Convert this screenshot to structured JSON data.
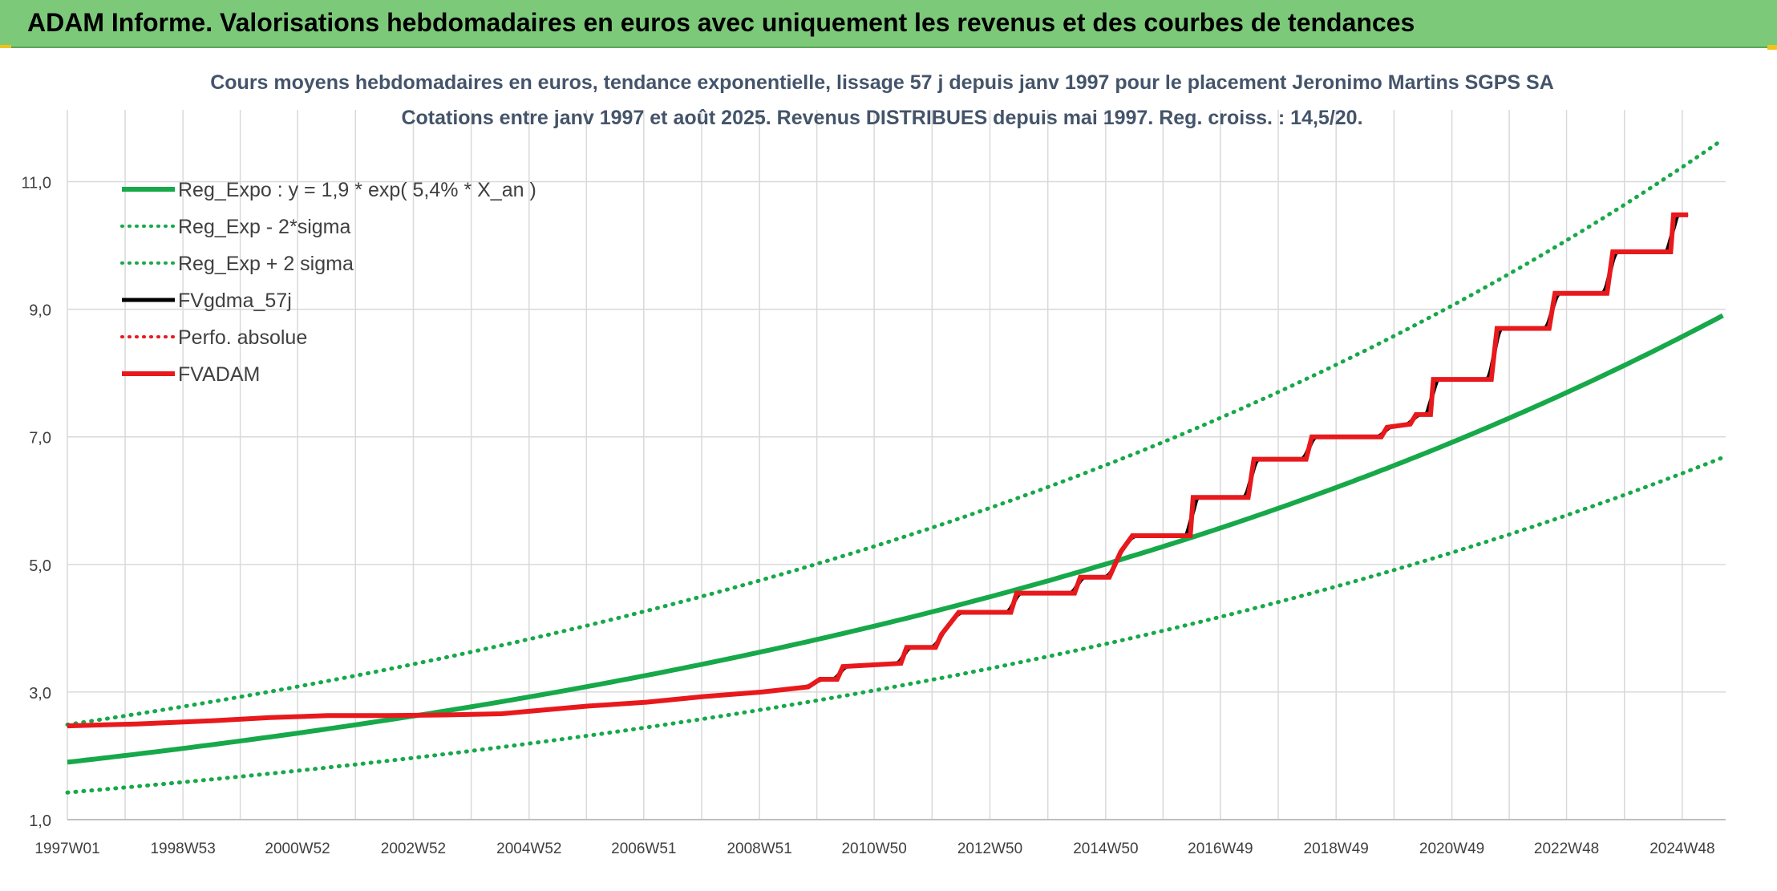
{
  "header": {
    "title": "ADAM Informe. Valorisations hebdomadaires en euros avec uniquement les revenus et des courbes de tendances"
  },
  "colors": {
    "header_bg": "#7dc97a",
    "reg_expo": "#17a84a",
    "fvgdma": "#000000",
    "perfo": "#e8191c",
    "fvadam": "#e8191c",
    "grid": "#d9d9d9",
    "title_text": "#44546a"
  },
  "chart_data": {
    "type": "line",
    "title": "Cours moyens hebdomadaires en euros, tendance exponentielle, lissage 57 j depuis janv 1997 pour le placement Jeronimo Martins SGPS SA",
    "subtitle": "Cotations entre janv 1997 et août 2025. Revenus DISTRIBUES depuis mai 1997. Reg. croiss. : 14,5/20.",
    "xlabel": "",
    "ylabel": "",
    "x_range": [
      "1997W01",
      "2025W35"
    ],
    "ylim": [
      1.0,
      12.0
    ],
    "y_ticks": [
      "1,0",
      "3,0",
      "5,0",
      "7,0",
      "9,0",
      "11,0"
    ],
    "x_ticks": [
      "1997W01",
      "1998W53",
      "2000W52",
      "2002W52",
      "2004W52",
      "2006W51",
      "2008W51",
      "2010W50",
      "2012W50",
      "2014W50",
      "2016W49",
      "2018W49",
      "2020W49",
      "2022W48",
      "2024W48"
    ],
    "grid": true,
    "legend_position": "top-left",
    "legend": [
      {
        "name": "Reg_Expo : y = 1,9 * exp( 5,4% *  X_an )",
        "style": "solid-thick",
        "color": "#17a84a"
      },
      {
        "name": "Reg_Exp - 2*sigma",
        "style": "dotted",
        "color": "#17a84a"
      },
      {
        "name": "Reg_Exp + 2 sigma",
        "style": "dotted",
        "color": "#17a84a"
      },
      {
        "name": "FVgdma_57j",
        "style": "solid",
        "color": "#000000"
      },
      {
        "name": "Perfo. absolue",
        "style": "dotted",
        "color": "#e8191c"
      },
      {
        "name": "FVADAM",
        "style": "solid-thick",
        "color": "#e8191c"
      }
    ],
    "regression": {
      "a": 1.9,
      "rate": 0.054,
      "lower_factor": 0.75,
      "upper_factor": 1.31
    },
    "series": [
      {
        "name": "FVADAM",
        "points": [
          [
            1997.0,
            2.47
          ],
          [
            1998.2,
            2.5
          ],
          [
            1999.5,
            2.55
          ],
          [
            2000.5,
            2.6
          ],
          [
            2001.5,
            2.63
          ],
          [
            2002.5,
            2.63
          ],
          [
            2003.5,
            2.64
          ],
          [
            2004.5,
            2.66
          ],
          [
            2005.0,
            2.7
          ],
          [
            2006.0,
            2.78
          ],
          [
            2007.0,
            2.84
          ],
          [
            2008.0,
            2.93
          ],
          [
            2009.0,
            3.0
          ],
          [
            2009.8,
            3.08
          ],
          [
            2010.0,
            3.2
          ],
          [
            2010.3,
            3.2
          ],
          [
            2010.4,
            3.4
          ],
          [
            2011.4,
            3.45
          ],
          [
            2011.5,
            3.7
          ],
          [
            2012.0,
            3.7
          ],
          [
            2012.1,
            3.9
          ],
          [
            2012.4,
            4.25
          ],
          [
            2013.3,
            4.25
          ],
          [
            2013.4,
            4.55
          ],
          [
            2014.4,
            4.55
          ],
          [
            2014.5,
            4.8
          ],
          [
            2015.0,
            4.8
          ],
          [
            2015.2,
            5.2
          ],
          [
            2015.4,
            5.45
          ],
          [
            2016.4,
            5.45
          ],
          [
            2016.45,
            6.05
          ],
          [
            2017.4,
            6.05
          ],
          [
            2017.5,
            6.65
          ],
          [
            2018.4,
            6.65
          ],
          [
            2018.5,
            7.0
          ],
          [
            2019.7,
            7.0
          ],
          [
            2019.8,
            7.15
          ],
          [
            2020.2,
            7.2
          ],
          [
            2020.3,
            7.35
          ],
          [
            2020.55,
            7.35
          ],
          [
            2020.6,
            7.9
          ],
          [
            2021.6,
            7.9
          ],
          [
            2021.7,
            8.7
          ],
          [
            2022.6,
            8.7
          ],
          [
            2022.7,
            9.25
          ],
          [
            2023.6,
            9.25
          ],
          [
            2023.7,
            9.9
          ],
          [
            2024.7,
            9.9
          ],
          [
            2024.75,
            10.48
          ],
          [
            2025.0,
            10.48
          ]
        ]
      }
    ]
  }
}
